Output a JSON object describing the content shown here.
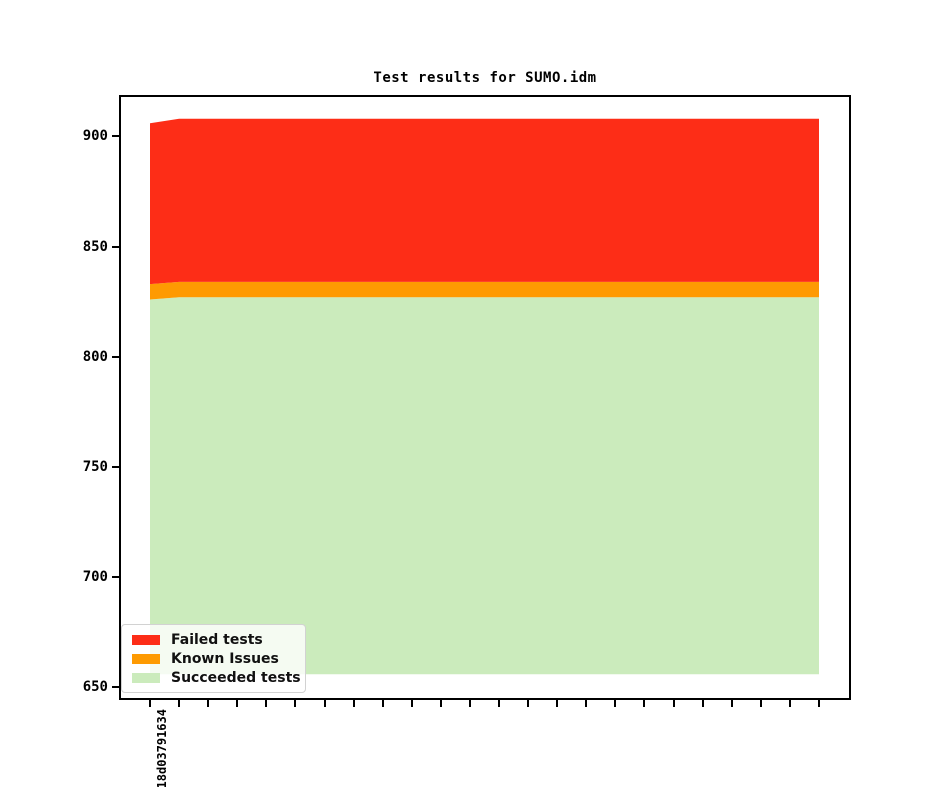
{
  "chart_data": {
    "type": "area",
    "stacked": true,
    "title": "Test results for SUMO.idm",
    "legend_position": "lower left",
    "grid": false,
    "yticks": [
      650,
      700,
      750,
      800,
      850,
      900
    ],
    "ylim": [
      644.3,
      918.8
    ],
    "baseline": 656,
    "num_points": 24,
    "x_tick_labels": [
      "18d03791634",
      "",
      "",
      "",
      "",
      "",
      "",
      "",
      "",
      "",
      "",
      "",
      "",
      "",
      "",
      "",
      "",
      "",
      "",
      "",
      "",
      "",
      "",
      ""
    ],
    "series": [
      {
        "name": "Failed tests",
        "color": "#fd2d17",
        "values": [
          73,
          74,
          74,
          74,
          74,
          74,
          74,
          74,
          74,
          74,
          74,
          74,
          74,
          74,
          74,
          74,
          74,
          74,
          74,
          74,
          74,
          74,
          74,
          74
        ]
      },
      {
        "name": "Known Issues",
        "color": "#fe9a02",
        "values": [
          7,
          7,
          7,
          7,
          7,
          7,
          7,
          7,
          7,
          7,
          7,
          7,
          7,
          7,
          7,
          7,
          7,
          7,
          7,
          7,
          7,
          7,
          7,
          7
        ]
      },
      {
        "name": "Succeeded tests",
        "color": "#cbebbc",
        "values": [
          826,
          827,
          827,
          827,
          827,
          827,
          827,
          827,
          827,
          827,
          827,
          827,
          827,
          827,
          827,
          827,
          827,
          827,
          827,
          827,
          827,
          827,
          827,
          827
        ]
      }
    ],
    "cumulative_tops": {
      "known_issues_top_first": 833,
      "known_issues_top_rest": 834,
      "total_top_first": 906,
      "total_top_rest": 908
    }
  }
}
